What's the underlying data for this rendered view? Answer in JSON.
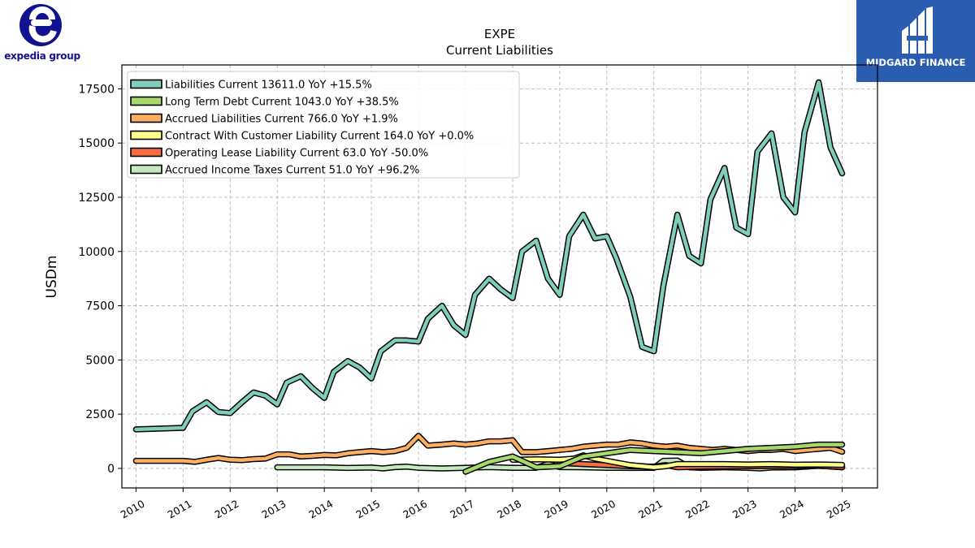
{
  "logos": {
    "left": {
      "text": "expedia group",
      "color": "#12128f"
    },
    "right": {
      "text": "MIDGARD FINANCE",
      "background": "#2a5db0"
    }
  },
  "chart_data": {
    "type": "line",
    "title": "EXPE",
    "subtitle": "Current  Liabilities",
    "xlabel": "",
    "ylabel": "USDm",
    "xlim": [
      2009.7,
      2025.75
    ],
    "ylim": [
      -900,
      18600
    ],
    "x_ticks": [
      2010,
      2011,
      2012,
      2013,
      2014,
      2015,
      2016,
      2017,
      2018,
      2019,
      2020,
      2021,
      2022,
      2023,
      2024,
      2025
    ],
    "y_ticks": [
      0,
      2500,
      5000,
      7500,
      10000,
      12500,
      15000,
      17500
    ],
    "grid": true,
    "legend_position": "top-left",
    "series": [
      {
        "name": "Liabilities Current  13611.0 YoY +15.5%",
        "color": "#7fcdbb",
        "points": [
          [
            2010.0,
            1800
          ],
          [
            2011.0,
            1870
          ],
          [
            2011.2,
            2630
          ],
          [
            2011.5,
            3050
          ],
          [
            2011.75,
            2600
          ],
          [
            2012.0,
            2550
          ],
          [
            2012.25,
            3050
          ],
          [
            2012.5,
            3500
          ],
          [
            2012.75,
            3350
          ],
          [
            2013.0,
            2950
          ],
          [
            2013.2,
            3950
          ],
          [
            2013.5,
            4250
          ],
          [
            2013.75,
            3700
          ],
          [
            2014.0,
            3250
          ],
          [
            2014.2,
            4450
          ],
          [
            2014.5,
            4950
          ],
          [
            2014.75,
            4650
          ],
          [
            2015.0,
            4150
          ],
          [
            2015.2,
            5400
          ],
          [
            2015.5,
            5900
          ],
          [
            2015.75,
            5900
          ],
          [
            2016.0,
            5850
          ],
          [
            2016.2,
            6900
          ],
          [
            2016.5,
            7500
          ],
          [
            2016.75,
            6600
          ],
          [
            2017.0,
            6150
          ],
          [
            2017.2,
            8000
          ],
          [
            2017.5,
            8750
          ],
          [
            2017.75,
            8250
          ],
          [
            2018.0,
            7850
          ],
          [
            2018.2,
            10000
          ],
          [
            2018.5,
            10500
          ],
          [
            2018.75,
            8750
          ],
          [
            2019.0,
            8000
          ],
          [
            2019.2,
            10700
          ],
          [
            2019.5,
            11700
          ],
          [
            2019.75,
            10600
          ],
          [
            2020.0,
            10700
          ],
          [
            2020.2,
            9700
          ],
          [
            2020.5,
            7900
          ],
          [
            2020.75,
            5600
          ],
          [
            2021.0,
            5400
          ],
          [
            2021.2,
            8400
          ],
          [
            2021.5,
            11700
          ],
          [
            2021.75,
            9800
          ],
          [
            2022.0,
            9450
          ],
          [
            2022.2,
            12400
          ],
          [
            2022.5,
            13850
          ],
          [
            2022.75,
            11100
          ],
          [
            2023.0,
            10800
          ],
          [
            2023.2,
            14600
          ],
          [
            2023.5,
            15450
          ],
          [
            2023.75,
            12500
          ],
          [
            2024.0,
            11800
          ],
          [
            2024.2,
            15500
          ],
          [
            2024.5,
            17800
          ],
          [
            2024.75,
            14800
          ],
          [
            2025.0,
            13600
          ]
        ]
      },
      {
        "name": "Long Term Debt Current  1043.0 YoY +38.5%",
        "color": "#a6d96a",
        "points": [
          [
            2017.0,
            -150
          ],
          [
            2017.5,
            300
          ],
          [
            2018.0,
            550
          ],
          [
            2018.5,
            50
          ],
          [
            2019.0,
            100
          ],
          [
            2019.5,
            550
          ],
          [
            2020.0,
            700
          ],
          [
            2020.5,
            850
          ],
          [
            2021.0,
            800
          ],
          [
            2021.5,
            750
          ],
          [
            2022.0,
            700
          ],
          [
            2022.5,
            800
          ],
          [
            2023.0,
            900
          ],
          [
            2023.5,
            950
          ],
          [
            2024.0,
            1000
          ],
          [
            2024.5,
            1100
          ],
          [
            2025.0,
            1100
          ]
        ]
      },
      {
        "name": "Accrued Liabilities Current  766.0 YoY +1.9%",
        "color": "#fdae61",
        "points": [
          [
            2010.0,
            350
          ],
          [
            2011.0,
            350
          ],
          [
            2011.25,
            300
          ],
          [
            2011.5,
            400
          ],
          [
            2011.75,
            480
          ],
          [
            2012.0,
            400
          ],
          [
            2012.25,
            380
          ],
          [
            2012.5,
            430
          ],
          [
            2012.75,
            450
          ],
          [
            2013.0,
            650
          ],
          [
            2013.25,
            650
          ],
          [
            2013.5,
            550
          ],
          [
            2013.75,
            580
          ],
          [
            2014.0,
            620
          ],
          [
            2014.25,
            600
          ],
          [
            2014.5,
            700
          ],
          [
            2014.75,
            750
          ],
          [
            2015.0,
            800
          ],
          [
            2015.25,
            750
          ],
          [
            2015.5,
            800
          ],
          [
            2015.75,
            950
          ],
          [
            2016.0,
            1500
          ],
          [
            2016.2,
            1050
          ],
          [
            2016.5,
            1100
          ],
          [
            2016.75,
            1150
          ],
          [
            2017.0,
            1100
          ],
          [
            2017.25,
            1150
          ],
          [
            2017.5,
            1250
          ],
          [
            2017.75,
            1250
          ],
          [
            2018.0,
            1300
          ],
          [
            2018.2,
            750
          ],
          [
            2018.5,
            750
          ],
          [
            2018.75,
            800
          ],
          [
            2019.0,
            850
          ],
          [
            2019.25,
            900
          ],
          [
            2019.5,
            1000
          ],
          [
            2019.75,
            1050
          ],
          [
            2020.0,
            1100
          ],
          [
            2020.25,
            1100
          ],
          [
            2020.5,
            1200
          ],
          [
            2020.75,
            1150
          ],
          [
            2021.0,
            1050
          ],
          [
            2021.25,
            1000
          ],
          [
            2021.5,
            1050
          ],
          [
            2021.75,
            950
          ],
          [
            2022.0,
            900
          ],
          [
            2022.25,
            850
          ],
          [
            2022.5,
            900
          ],
          [
            2022.75,
            850
          ],
          [
            2023.0,
            800
          ],
          [
            2023.25,
            850
          ],
          [
            2023.5,
            850
          ],
          [
            2023.75,
            900
          ],
          [
            2024.0,
            800
          ],
          [
            2024.25,
            850
          ],
          [
            2024.5,
            900
          ],
          [
            2024.75,
            950
          ],
          [
            2025.0,
            766
          ]
        ]
      },
      {
        "name": "Contract With Customer Liability Current  164.0 YoY +0.0%",
        "color": "#ffff8c",
        "points": [
          [
            2018.0,
            400
          ],
          [
            2018.5,
            420
          ],
          [
            2019.0,
            400
          ],
          [
            2019.3,
            450
          ],
          [
            2019.5,
            600
          ],
          [
            2019.75,
            450
          ],
          [
            2020.0,
            350
          ],
          [
            2020.25,
            250
          ],
          [
            2020.5,
            150
          ],
          [
            2021.0,
            50
          ],
          [
            2021.25,
            100
          ],
          [
            2021.5,
            200
          ],
          [
            2022.0,
            200
          ],
          [
            2022.5,
            200
          ],
          [
            2023.0,
            180
          ],
          [
            2023.5,
            200
          ],
          [
            2024.0,
            170
          ],
          [
            2024.5,
            180
          ],
          [
            2025.0,
            164
          ]
        ]
      },
      {
        "name": "Operating Lease Liability Current  63.0 YoY -50.0%",
        "color": "#f46d43",
        "points": [
          [
            2019.0,
            250
          ],
          [
            2019.5,
            200
          ],
          [
            2020.0,
            150
          ],
          [
            2020.5,
            100
          ],
          [
            2021.0,
            80
          ],
          [
            2021.25,
            150
          ],
          [
            2021.5,
            50
          ],
          [
            2022.0,
            80
          ],
          [
            2022.5,
            90
          ],
          [
            2023.0,
            100
          ],
          [
            2023.5,
            110
          ],
          [
            2024.0,
            110
          ],
          [
            2024.5,
            120
          ],
          [
            2025.0,
            63
          ]
        ]
      },
      {
        "name": "Accrued Income Taxes Current  51.0 YoY +96.2%",
        "color": "#c7e9c0",
        "points": [
          [
            2013.0,
            50
          ],
          [
            2013.5,
            50
          ],
          [
            2014.0,
            50
          ],
          [
            2014.5,
            20
          ],
          [
            2015.0,
            40
          ],
          [
            2015.25,
            0
          ],
          [
            2015.5,
            60
          ],
          [
            2015.75,
            80
          ],
          [
            2016.0,
            30
          ],
          [
            2016.5,
            0
          ],
          [
            2017.0,
            30
          ],
          [
            2017.5,
            60
          ],
          [
            2018.0,
            30
          ],
          [
            2018.5,
            30
          ],
          [
            2018.75,
            200
          ],
          [
            2019.0,
            60
          ],
          [
            2019.5,
            50
          ],
          [
            2020.0,
            30
          ],
          [
            2020.5,
            20
          ],
          [
            2021.0,
            30
          ],
          [
            2021.2,
            350
          ],
          [
            2021.5,
            360
          ],
          [
            2021.75,
            50
          ],
          [
            2022.0,
            30
          ],
          [
            2022.5,
            50
          ],
          [
            2023.0,
            30
          ],
          [
            2023.25,
            0
          ],
          [
            2023.5,
            40
          ],
          [
            2024.0,
            50
          ],
          [
            2024.5,
            120
          ],
          [
            2025.0,
            51
          ]
        ]
      }
    ]
  }
}
